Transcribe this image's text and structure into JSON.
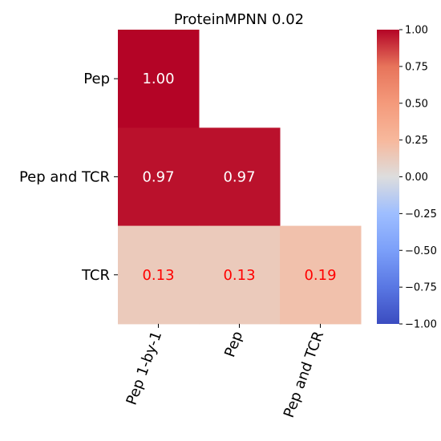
{
  "chart_data": {
    "type": "heatmap",
    "title": "ProteinMPNN 0.02",
    "rows": [
      "Pep",
      "Pep and TCR",
      "TCR"
    ],
    "columns": [
      "Pep 1-by-1",
      "Pep",
      "Pep and TCR"
    ],
    "values": [
      [
        1.0,
        null,
        null
      ],
      [
        0.97,
        0.97,
        null
      ],
      [
        0.13,
        0.13,
        0.19
      ]
    ],
    "cell_labels": [
      [
        "1.00",
        null,
        null
      ],
      [
        "0.97",
        "0.97",
        null
      ],
      [
        "0.13",
        "0.13",
        "0.19"
      ]
    ],
    "annotation_colors": {
      "high": "#ffffff",
      "low": "#ff0000"
    },
    "colormap": "coolwarm",
    "vmin": -1.0,
    "vmax": 1.0,
    "colorbar_ticks": [
      "1.00",
      "0.75",
      "0.50",
      "0.25",
      "0.00",
      "−0.25",
      "−0.50",
      "−0.75",
      "−1.00"
    ],
    "colorbar_tick_values": [
      1.0,
      0.75,
      0.5,
      0.25,
      0.0,
      -0.25,
      -0.5,
      -0.75,
      -1.0
    ],
    "mask": "upper-triangle"
  }
}
